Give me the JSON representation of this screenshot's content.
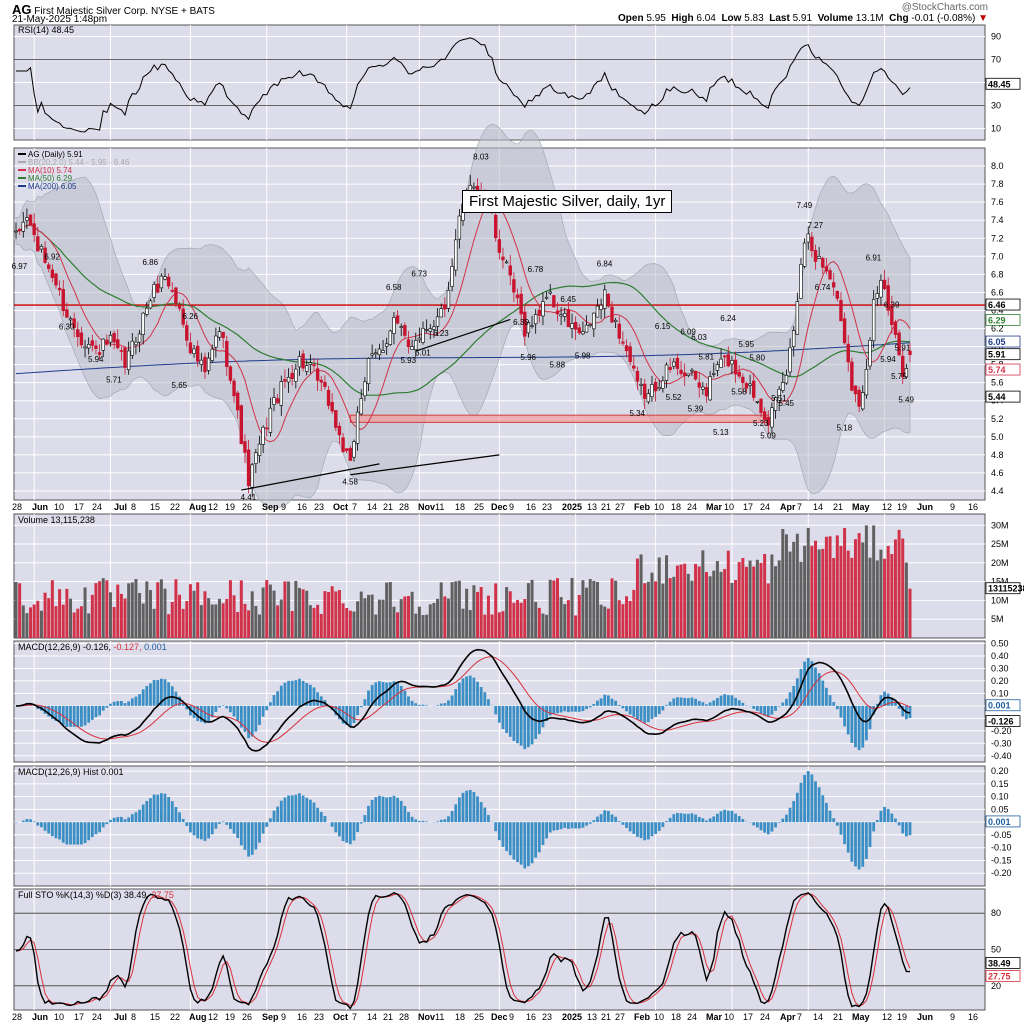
{
  "header": {
    "ticker": "AG",
    "company": "First Majestic Silver Corp.",
    "exchange": "NYSE + BATS",
    "date": "21-May-2025 1:48pm",
    "watermark": "@StockCharts.com",
    "open_label": "Open",
    "open": "5.95",
    "high_label": "High",
    "high": "6.04",
    "low_label": "Low",
    "low": "5.83",
    "last_label": "Last",
    "last": "5.91",
    "volume_label": "Volume",
    "volume": "13.1M",
    "chg_label": "Chg",
    "chg": "-0.01 (-0.08%)"
  },
  "annotation": "First Majestic Silver, daily, 1yr",
  "chart_data": [
    {
      "panel": "rsi",
      "type": "line",
      "label": "RSI(14) 48.45",
      "ylim": [
        0,
        100
      ],
      "ticks": [
        10,
        30,
        50,
        70,
        90
      ],
      "reference_lines": [
        30,
        70
      ],
      "last_value_label": "48.45",
      "line_color": "#000000"
    },
    {
      "panel": "price",
      "type": "candlestick",
      "legend": [
        {
          "label": "AG (Daily) 5.91",
          "color": "#000000"
        },
        {
          "label": "BB(20,2.0) 5.44 - 5.95 - 6.46",
          "color": "#aaaaaa"
        },
        {
          "label": "MA(10) 5.74",
          "color": "#d1324a"
        },
        {
          "label": "MA(50) 6.29",
          "color": "#2e7d32"
        },
        {
          "label": "MA(200) 6.05",
          "color": "#1f3b8c"
        }
      ],
      "ylim": [
        4.3,
        8.2
      ],
      "ticks": [
        "4.4",
        "4.6",
        "4.8",
        "5.0",
        "5.2",
        "5.4",
        "5.6",
        "5.8",
        "6.0",
        "6.2",
        "6.4",
        "6.6",
        "6.8",
        "7.0",
        "7.2",
        "7.4",
        "7.6",
        "7.8",
        "8.0"
      ],
      "right_labels": [
        {
          "value": 6.46,
          "text": "6.46",
          "color": "#000000"
        },
        {
          "value": 6.29,
          "text": "6.29",
          "color": "#2e7d32"
        },
        {
          "value": 6.05,
          "text": "6.05",
          "color": "#1f3b8c"
        },
        {
          "value": 5.91,
          "text": "5.91",
          "color": "#000000"
        },
        {
          "value": 5.74,
          "text": "5.74",
          "color": "#d1324a"
        },
        {
          "value": 5.44,
          "text": "5.44",
          "color": "#000000"
        }
      ],
      "horizontal_line": 6.46,
      "support_zone": [
        5.16,
        5.24
      ],
      "peak_labels": [
        "6.97",
        "6.92",
        "6.30",
        "5.94",
        "5.71",
        "6.86",
        "5.65",
        "6.26",
        "4.41",
        "4.58",
        "6.58",
        "5.93",
        "6.73",
        "6.01",
        "6.23",
        "8.03",
        "6.35",
        "5.96",
        "6.78",
        "5.88",
        "6.45",
        "5.98",
        "6.84",
        "5.34",
        "6.15",
        "5.52",
        "6.09",
        "5.39",
        "6.03",
        "5.81",
        "5.13",
        "6.24",
        "5.58",
        "5.95",
        "5.80",
        "5.23",
        "5.51",
        "5.09",
        "5.45",
        "7.49",
        "7.27",
        "6.74",
        "5.18",
        "6.91",
        "5.94",
        "6.39",
        "5.75",
        "5.91",
        "5.49"
      ]
    },
    {
      "panel": "volume",
      "type": "bar",
      "label": "Volume 13,115,238",
      "ylim": [
        0,
        33000000
      ],
      "ticks": [
        "5M",
        "10M",
        "15M",
        "20M",
        "25M",
        "30M"
      ],
      "last_value_label": "13115238",
      "colors": {
        "down": "#d1324a",
        "up": "#606060"
      }
    },
    {
      "panel": "macd",
      "type": "line",
      "label_prefix": "MACD(12,26,9)",
      "macd": "-0.126",
      "signal": "-0.127",
      "hist": "0.001",
      "ylim": [
        -0.45,
        0.52
      ],
      "ticks": [
        "-0.40",
        "-0.30",
        "-0.20",
        "-0.10",
        "0.00",
        "0.10",
        "0.20",
        "0.30",
        "0.40",
        "0.50"
      ],
      "right_labels": [
        "0.001",
        "-0.126"
      ]
    },
    {
      "panel": "macd_hist",
      "type": "bar",
      "label": "MACD(12,26,9) Hist 0.001",
      "ylim": [
        -0.25,
        0.22
      ],
      "ticks": [
        "-0.20",
        "-0.15",
        "-0.10",
        "-0.05",
        "0.00",
        "0.05",
        "0.10",
        "0.15",
        "0.20"
      ],
      "right_labels": [
        "0.001"
      ]
    },
    {
      "panel": "stoch",
      "type": "line",
      "label_prefix": "Full STO %K(14,3) %D(3)",
      "k": "38.49",
      "d": "27.75",
      "ylim": [
        0,
        100
      ],
      "ticks": [
        "20",
        "50",
        "80"
      ],
      "reference_lines": [
        20,
        50,
        80
      ],
      "right_labels": [
        "38.49",
        "27.75"
      ]
    }
  ],
  "x_axis": {
    "bold": [
      "Jun",
      "Jul",
      "Aug",
      "Sep",
      "Oct",
      "Nov",
      "Dec",
      "2025",
      "Feb",
      "Mar",
      "Apr",
      "May",
      "Jun"
    ],
    "ticks": [
      "28",
      "Jun",
      "10",
      "17",
      "24",
      "Jul",
      "8",
      "15",
      "22",
      "Aug",
      "12",
      "19",
      "26",
      "Sep",
      "9",
      "16",
      "23",
      "Oct",
      "7",
      "14",
      "21",
      "28",
      "Nov",
      "11",
      "18",
      "25",
      "Dec",
      "9",
      "16",
      "23",
      "2025",
      "13",
      "21",
      "27",
      "Feb",
      "10",
      "18",
      "24",
      "Mar",
      "10",
      "17",
      "24",
      "Apr",
      "7",
      "14",
      "21",
      "May",
      "12",
      "19",
      "Jun",
      "9",
      "16"
    ]
  }
}
